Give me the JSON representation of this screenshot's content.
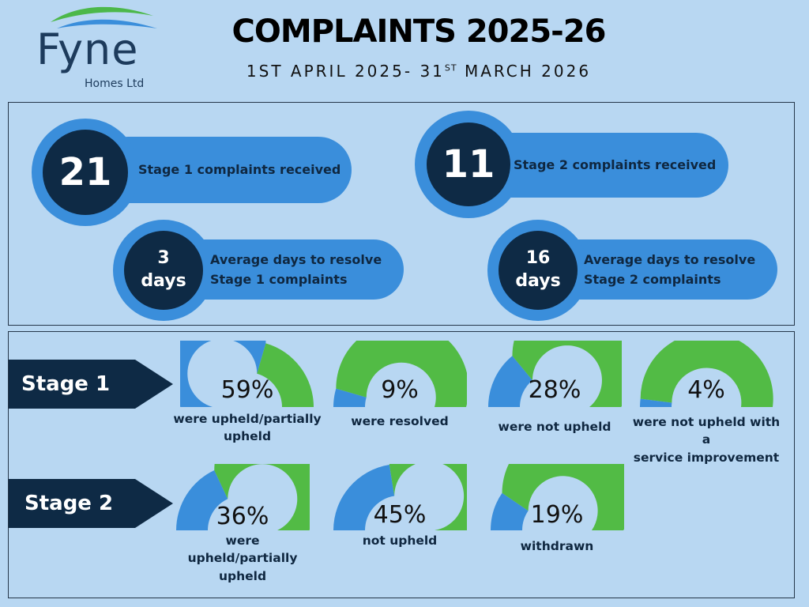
{
  "logo": {
    "name": "Fyne",
    "sub": "Homes Ltd",
    "colors": {
      "green": "#4cb84a",
      "blue": "#3a8edb",
      "navy": "#1d3b5c"
    }
  },
  "header": {
    "title": "COMPLAINTS 2025-26",
    "period_start": "1ST APRIL 2025-",
    "period_end_day": "31",
    "period_end_suffix": "ST",
    "period_end_rest": "MARCH 2026"
  },
  "summary": {
    "stage1_received": {
      "value": "21",
      "label": "Stage 1 complaints received"
    },
    "stage2_received": {
      "value": "11",
      "label": "Stage 2 complaints received"
    },
    "stage1_days": {
      "value": "3",
      "unit": "days",
      "label_line1": "Average days to resolve",
      "label_line2": "Stage 1 complaints"
    },
    "stage2_days": {
      "value": "16",
      "unit": "days",
      "label_line1": "Average days to resolve",
      "label_line2": "Stage 2 complaints"
    }
  },
  "colors": {
    "blue": "#3a8edb",
    "green": "#52bb45",
    "navy": "#0e2a45",
    "background": "#b8d7f2"
  },
  "stages": [
    {
      "label": "Stage 1",
      "gauges": [
        {
          "percent": 59,
          "pct_label": "59%",
          "caption": [
            "were upheld/partially",
            "upheld"
          ]
        },
        {
          "percent": 9,
          "pct_label": "9%",
          "caption": [
            "were resolved"
          ]
        },
        {
          "percent": 28,
          "pct_label": "28%",
          "caption": [
            "were not upheld"
          ]
        },
        {
          "percent": 4,
          "pct_label": "4%",
          "caption": [
            "were not upheld with a",
            "service improvement"
          ]
        }
      ]
    },
    {
      "label": "Stage 2",
      "gauges": [
        {
          "percent": 36,
          "pct_label": "36%",
          "caption": [
            "were",
            "upheld/partially",
            "upheld"
          ]
        },
        {
          "percent": 45,
          "pct_label": "45%",
          "caption": [
            "not upheld"
          ]
        },
        {
          "percent": 19,
          "pct_label": "19%",
          "caption": [
            "withdrawn"
          ]
        }
      ]
    }
  ]
}
